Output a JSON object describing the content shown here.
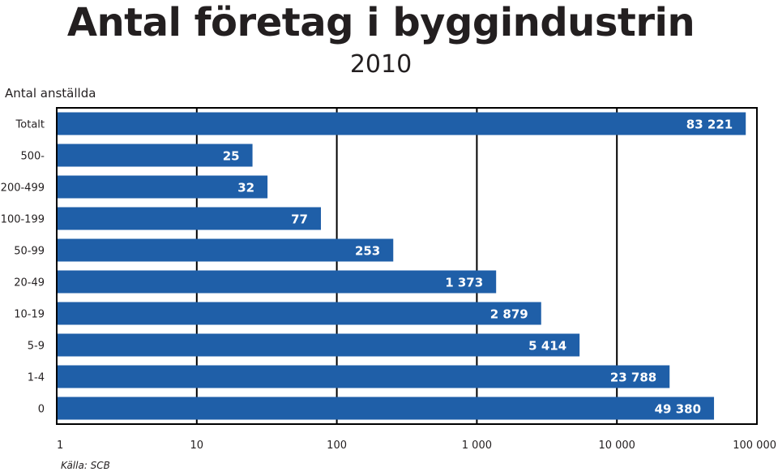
{
  "title": "Antal företag i byggindustrin",
  "subtitle": "2010",
  "source": "Källa: SCB",
  "colors": {
    "bar": "#1f5fa8",
    "bar_label": "#ffffff",
    "grid": "#000000",
    "text": "#231f20"
  },
  "chart_data": {
    "type": "bar",
    "orientation": "horizontal",
    "title": "Antal företag i byggindustrin",
    "subtitle": "2010",
    "ylabel": "Antal anställda",
    "xlabel": "",
    "xscale": "log",
    "xlim": [
      1,
      100000
    ],
    "grid": true,
    "categories": [
      "Totalt",
      "500-",
      "200-499",
      "100-199",
      "50-99",
      "20-49",
      "10-19",
      "5-9",
      "1-4",
      "0"
    ],
    "values": [
      83221,
      25,
      32,
      77,
      253,
      1373,
      2879,
      5414,
      23788,
      49380
    ],
    "value_labels": [
      "83 221",
      "25",
      "32",
      "77",
      "253",
      "1 373",
      "2 879",
      "5 414",
      "23 788",
      "49 380"
    ],
    "x_ticks": [
      1,
      10,
      100,
      1000,
      10000,
      100000
    ],
    "x_tick_labels": [
      "1",
      "10",
      "100",
      "1 000",
      "10 000",
      "100 000"
    ]
  }
}
